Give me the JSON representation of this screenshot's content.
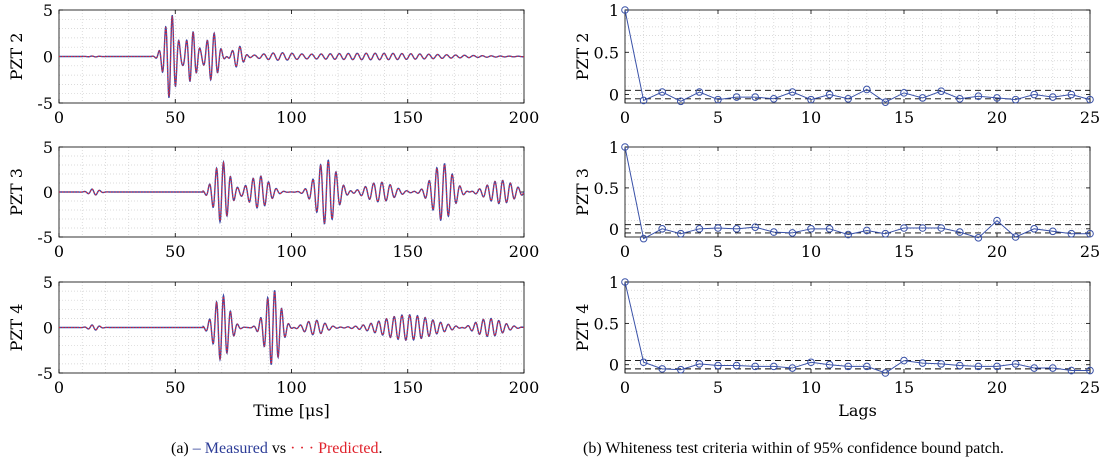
{
  "figure": {
    "left_caption": {
      "prefix": "(a)",
      "measured_symbol": "–",
      "measured": "Measured",
      "vs": "vs",
      "predicted_symbol": "· · ·",
      "predicted": "Predicted",
      "suffix": "."
    },
    "right_caption": "(b) Whiteness test criteria within of 95% confidence bound patch.",
    "colors": {
      "measured": "#3b4aa6",
      "predicted": "#e32636",
      "acf": "#3a52a8",
      "bound": "#000000",
      "grid": "#cfcfcf"
    }
  },
  "chart_data": [
    {
      "type": "line",
      "panel": "a1",
      "ylabel": "PZT 2",
      "xlabel": "",
      "xlim": [
        0,
        200
      ],
      "ylim": [
        -5,
        5
      ],
      "xticks": [
        0,
        50,
        100,
        150,
        200
      ],
      "yticks": [
        -5,
        0,
        5
      ],
      "grid": true,
      "series": [
        {
          "name": "Measured"
        },
        {
          "name": "Predicted"
        }
      ],
      "packets": [
        {
          "t": 48,
          "sigma": 3.5,
          "f": 0.35,
          "amp": 4.6
        },
        {
          "t": 57,
          "sigma": 3.0,
          "f": 0.35,
          "amp": 2.8
        },
        {
          "t": 66,
          "sigma": 3.5,
          "f": 0.33,
          "amp": 2.6
        },
        {
          "t": 77,
          "sigma": 3.0,
          "f": 0.3,
          "amp": 1.2
        },
        {
          "t": 95,
          "sigma": 12,
          "f": 0.25,
          "amp": 0.5
        },
        {
          "t": 135,
          "sigma": 40,
          "f": 0.26,
          "amp": 0.35
        }
      ],
      "onset": 40,
      "noise": [
        {
          "t": 15,
          "amp": 0.05
        }
      ]
    },
    {
      "type": "line",
      "panel": "a2",
      "ylabel": "PZT 3",
      "xlabel": "",
      "xlim": [
        0,
        200
      ],
      "ylim": [
        -5,
        5
      ],
      "xticks": [
        0,
        50,
        100,
        150,
        200
      ],
      "yticks": [
        -5,
        0,
        5
      ],
      "grid": true,
      "series": [
        {
          "name": "Measured"
        },
        {
          "name": "Predicted"
        }
      ],
      "packets": [
        {
          "t": 70,
          "sigma": 4.5,
          "f": 0.33,
          "amp": 3.4
        },
        {
          "t": 86,
          "sigma": 6,
          "f": 0.3,
          "amp": 1.8
        },
        {
          "t": 115,
          "sigma": 6,
          "f": 0.3,
          "amp": 3.6
        },
        {
          "t": 138,
          "sigma": 8,
          "f": 0.28,
          "amp": 1.1
        },
        {
          "t": 165,
          "sigma": 6,
          "f": 0.3,
          "amp": 3.2
        },
        {
          "t": 190,
          "sigma": 8,
          "f": 0.3,
          "amp": 1.3
        }
      ],
      "onset": 62,
      "noise": [
        {
          "t": 15,
          "amp": 0.35
        }
      ]
    },
    {
      "type": "line",
      "panel": "a3",
      "ylabel": "PZT 4",
      "xlabel": "Time [μs]",
      "xlim": [
        0,
        200
      ],
      "ylim": [
        -5,
        5
      ],
      "xticks": [
        0,
        50,
        100,
        150,
        200
      ],
      "yticks": [
        -5,
        0,
        5
      ],
      "grid": true,
      "series": [
        {
          "name": "Measured"
        },
        {
          "name": "Predicted"
        }
      ],
      "packets": [
        {
          "t": 70,
          "sigma": 4.5,
          "f": 0.33,
          "amp": 3.6
        },
        {
          "t": 92,
          "sigma": 4.5,
          "f": 0.33,
          "amp": 4.2
        },
        {
          "t": 110,
          "sigma": 6,
          "f": 0.28,
          "amp": 0.8
        },
        {
          "t": 150,
          "sigma": 15,
          "f": 0.3,
          "amp": 1.4
        },
        {
          "t": 185,
          "sigma": 8,
          "f": 0.3,
          "amp": 1.0
        }
      ],
      "onset": 62,
      "noise": [
        {
          "t": 15,
          "amp": 0.3
        }
      ]
    },
    {
      "type": "line",
      "panel": "b1",
      "ylabel": "PZT 2",
      "xlabel": "",
      "xlim": [
        0,
        25
      ],
      "ylim": [
        -0.1,
        1
      ],
      "xticks": [
        0,
        5,
        10,
        15,
        20,
        25
      ],
      "yticks": [
        0,
        0.5,
        1
      ],
      "grid": true,
      "bound": 0.05,
      "x": [
        0,
        1,
        2,
        3,
        4,
        5,
        6,
        7,
        8,
        9,
        10,
        11,
        12,
        13,
        14,
        15,
        16,
        17,
        18,
        19,
        20,
        21,
        22,
        23,
        24,
        25
      ],
      "values": [
        1,
        -0.07,
        0.03,
        -0.08,
        0.03,
        -0.06,
        -0.03,
        -0.03,
        -0.05,
        0.03,
        -0.06,
        0.0,
        -0.05,
        0.06,
        -0.09,
        0.02,
        -0.04,
        0.04,
        -0.05,
        -0.02,
        -0.04,
        -0.06,
        0.0,
        -0.03,
        0.0,
        -0.06
      ]
    },
    {
      "type": "line",
      "panel": "b2",
      "ylabel": "PZT 3",
      "xlabel": "",
      "xlim": [
        0,
        25
      ],
      "ylim": [
        -0.1,
        1
      ],
      "xticks": [
        0,
        5,
        10,
        15,
        20,
        25
      ],
      "yticks": [
        0,
        0.5,
        1
      ],
      "grid": true,
      "bound": 0.05,
      "x": [
        0,
        1,
        2,
        3,
        4,
        5,
        6,
        7,
        8,
        9,
        10,
        11,
        12,
        13,
        14,
        15,
        16,
        17,
        18,
        19,
        20,
        21,
        22,
        23,
        24,
        25
      ],
      "values": [
        1,
        -0.12,
        0.0,
        -0.06,
        0.0,
        0.01,
        0.0,
        0.02,
        -0.04,
        -0.05,
        0.0,
        0.0,
        -0.07,
        -0.02,
        -0.06,
        0.01,
        0.01,
        0.01,
        -0.04,
        -0.11,
        0.1,
        -0.1,
        0.0,
        -0.03,
        -0.06,
        -0.06
      ]
    },
    {
      "type": "line",
      "panel": "b3",
      "ylabel": "PZT 4",
      "xlabel": "Lags",
      "xlim": [
        0,
        25
      ],
      "ylim": [
        -0.1,
        1
      ],
      "xticks": [
        0,
        5,
        10,
        15,
        20,
        25
      ],
      "yticks": [
        0,
        0.5,
        1
      ],
      "grid": true,
      "bound": 0.05,
      "x": [
        0,
        1,
        2,
        3,
        4,
        5,
        6,
        7,
        8,
        9,
        10,
        11,
        12,
        13,
        14,
        15,
        16,
        17,
        18,
        19,
        20,
        21,
        22,
        23,
        24,
        25
      ],
      "values": [
        1,
        0.03,
        -0.05,
        -0.06,
        0.01,
        -0.01,
        -0.01,
        -0.02,
        -0.02,
        -0.04,
        0.03,
        0.0,
        -0.02,
        -0.02,
        -0.1,
        0.05,
        0.02,
        0.01,
        -0.01,
        -0.02,
        -0.02,
        0.01,
        -0.04,
        -0.04,
        -0.07,
        -0.07
      ]
    }
  ]
}
